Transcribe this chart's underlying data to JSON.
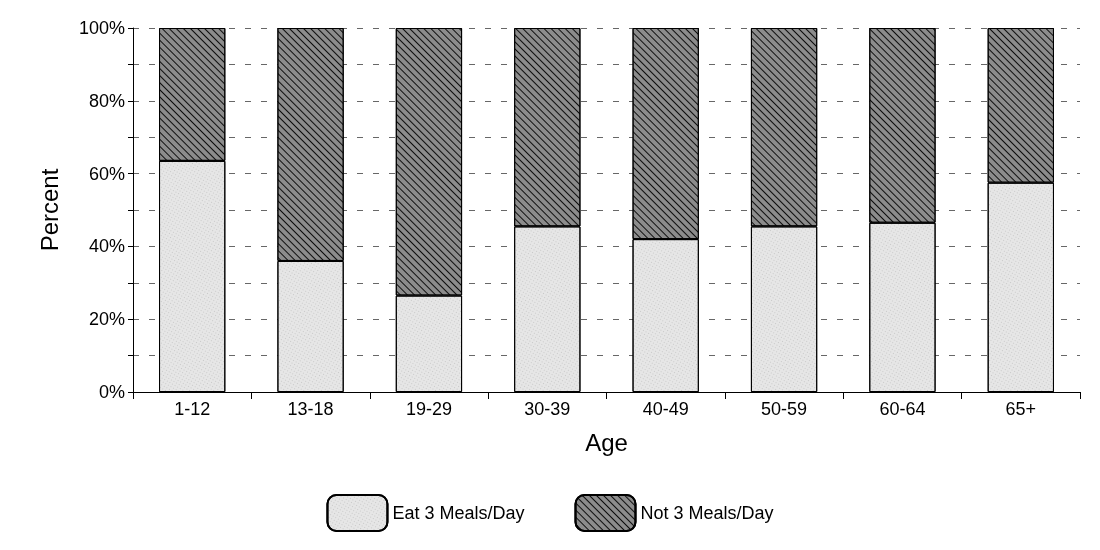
{
  "chart_data": {
    "type": "bar",
    "stacked": true,
    "xlabel": "Age",
    "ylabel": "Percent",
    "categories": [
      "1-12",
      "13-18",
      "19-29",
      "30-39",
      "40-49",
      "50-59",
      "60-64",
      "65+"
    ],
    "series": [
      {
        "name": "Eat 3 Meals/Day",
        "color": "#e6e6e6",
        "values": [
          63.5,
          36,
          26.5,
          45.5,
          42,
          45.5,
          46.5,
          57.5
        ]
      },
      {
        "name": "Not 3 Meals/Day",
        "color": "#8c8c8c",
        "values": [
          36.5,
          64,
          73.5,
          54.5,
          58,
          54.5,
          53.5,
          42.5
        ]
      }
    ],
    "ylim": [
      0,
      100
    ],
    "yticks": [
      {
        "value": 0,
        "label": "0%"
      },
      {
        "value": 10,
        "label": null
      },
      {
        "value": 20,
        "label": "20%"
      },
      {
        "value": 30,
        "label": null
      },
      {
        "value": 40,
        "label": "40%"
      },
      {
        "value": 50,
        "label": null
      },
      {
        "value": 60,
        "label": "60%"
      },
      {
        "value": 70,
        "label": null
      },
      {
        "value": 80,
        "label": "80%"
      },
      {
        "value": 90,
        "label": null
      },
      {
        "value": 100,
        "label": "100%"
      }
    ],
    "grid": "y",
    "legend": "bottom"
  }
}
